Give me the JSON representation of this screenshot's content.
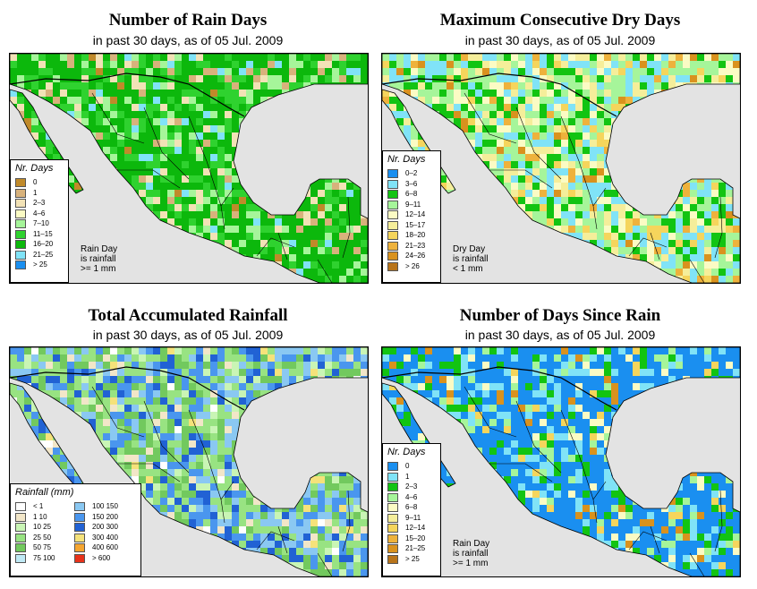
{
  "colors": {
    "land": "#0fbf1a",
    "sea": "#e3e3e3",
    "border": "#000000"
  },
  "panels": [
    {
      "title": "Number of Rain Days",
      "subtitle": "in past 30 days, as of  05 Jul. 2009",
      "legend_title": "Nr. Days",
      "legend": [
        {
          "label": "0",
          "color": "#c08a2a"
        },
        {
          "label": "1",
          "color": "#d8b27c"
        },
        {
          "label": "2–3",
          "color": "#f2e2b6"
        },
        {
          "label": "4–6",
          "color": "#fbfbc4"
        },
        {
          "label": "7–10",
          "color": "#a6f59a"
        },
        {
          "label": "11–15",
          "color": "#2fd22f"
        },
        {
          "label": "16–20",
          "color": "#0cb80c"
        },
        {
          "label": "21–25",
          "color": "#80e3f7"
        },
        {
          "label": "> 25",
          "color": "#1a8ff0"
        }
      ],
      "note": [
        "Rain Day",
        "is rainfall",
        ">= 1 mm"
      ],
      "land_mix": [
        {
          "color": "#0cb80c",
          "w": 50
        },
        {
          "color": "#2fd22f",
          "w": 18
        },
        {
          "color": "#a6f59a",
          "w": 12
        },
        {
          "color": "#f2e2b6",
          "w": 8
        },
        {
          "color": "#d8b27c",
          "w": 6
        },
        {
          "color": "#80e3f7",
          "w": 4
        },
        {
          "color": "#c08a2a",
          "w": 2
        }
      ]
    },
    {
      "title": "Maximum Consecutive Dry Days",
      "subtitle": "in past 30 days, as of  05 Jul. 2009",
      "legend_title": "Nr. Days",
      "legend": [
        {
          "label": "0–2",
          "color": "#1a8ff0"
        },
        {
          "label": "3–6",
          "color": "#80e3f7"
        },
        {
          "label": "6–8",
          "color": "#12c412"
        },
        {
          "label": "9–11",
          "color": "#a6f59a"
        },
        {
          "label": "12–14",
          "color": "#fbfbc4"
        },
        {
          "label": "15–17",
          "color": "#f5ee9a"
        },
        {
          "label": "18–20",
          "color": "#f5d55c"
        },
        {
          "label": "21–23",
          "color": "#eeb23c"
        },
        {
          "label": "24–26",
          "color": "#d9921e"
        },
        {
          "label": "> 26",
          "color": "#b8741a"
        }
      ],
      "note": [
        "Dry Day",
        "is rainfall",
        "< 1 mm"
      ],
      "land_mix": [
        {
          "color": "#a6f59a",
          "w": 24
        },
        {
          "color": "#80e3f7",
          "w": 20
        },
        {
          "color": "#12c412",
          "w": 16
        },
        {
          "color": "#fbfbc4",
          "w": 14
        },
        {
          "color": "#f5ee9a",
          "w": 10
        },
        {
          "color": "#f5d55c",
          "w": 7
        },
        {
          "color": "#eeb23c",
          "w": 5
        },
        {
          "color": "#d9921e",
          "w": 4
        }
      ]
    },
    {
      "title": "Total Accumulated Rainfall",
      "subtitle": "in past 30 days, as of  05 Jul. 2009",
      "legend_title": "Rainfall (mm)",
      "legend": [
        {
          "label": "< 1",
          "color": "#ffffff"
        },
        {
          "label": "1    10",
          "color": "#f2e6c8"
        },
        {
          "label": "10    25",
          "color": "#c9f5b5"
        },
        {
          "label": "25    50",
          "color": "#98e382"
        },
        {
          "label": "50    75",
          "color": "#72c95e"
        },
        {
          "label": "75  100",
          "color": "#bfe9f5"
        },
        {
          "label": "100  150",
          "color": "#8ac8f2"
        },
        {
          "label": "150  200",
          "color": "#4a96ee"
        },
        {
          "label": "200  300",
          "color": "#2162d4"
        },
        {
          "label": "300  400",
          "color": "#f5e27a"
        },
        {
          "label": "400  600",
          "color": "#f5a530"
        },
        {
          "label": "> 600",
          "color": "#e8321a"
        }
      ],
      "note": [],
      "land_mix": [
        {
          "color": "#98e382",
          "w": 24
        },
        {
          "color": "#72c95e",
          "w": 18
        },
        {
          "color": "#4a96ee",
          "w": 16
        },
        {
          "color": "#8ac8f2",
          "w": 14
        },
        {
          "color": "#2162d4",
          "w": 10
        },
        {
          "color": "#c9f5b5",
          "w": 8
        },
        {
          "color": "#f2e6c8",
          "w": 6
        },
        {
          "color": "#f5e27a",
          "w": 2
        },
        {
          "color": "#ffffff",
          "w": 2
        }
      ]
    },
    {
      "title": "Number of Days Since Rain",
      "subtitle": "in past 30 days, as of  05 Jul. 2009",
      "legend_title": "Nr. Days",
      "legend": [
        {
          "label": "0",
          "color": "#1a8ff0"
        },
        {
          "label": "1",
          "color": "#80e3f7"
        },
        {
          "label": "2–3",
          "color": "#12c412"
        },
        {
          "label": "4–6",
          "color": "#a6f59a"
        },
        {
          "label": "6–8",
          "color": "#fbfbc4"
        },
        {
          "label": "9–11",
          "color": "#f5ee9a"
        },
        {
          "label": "12–14",
          "color": "#f5d55c"
        },
        {
          "label": "15–20",
          "color": "#eeb23c"
        },
        {
          "label": "21–25",
          "color": "#d9921e"
        },
        {
          "label": "> 25",
          "color": "#b8741a"
        }
      ],
      "note": [
        "Rain Day",
        "is rainfall",
        ">= 1 mm"
      ],
      "land_mix": [
        {
          "color": "#1a8ff0",
          "w": 54
        },
        {
          "color": "#80e3f7",
          "w": 14
        },
        {
          "color": "#12c412",
          "w": 12
        },
        {
          "color": "#a6f59a",
          "w": 8
        },
        {
          "color": "#fbfbc4",
          "w": 5
        },
        {
          "color": "#f5d55c",
          "w": 4
        },
        {
          "color": "#d9921e",
          "w": 3
        }
      ]
    }
  ]
}
